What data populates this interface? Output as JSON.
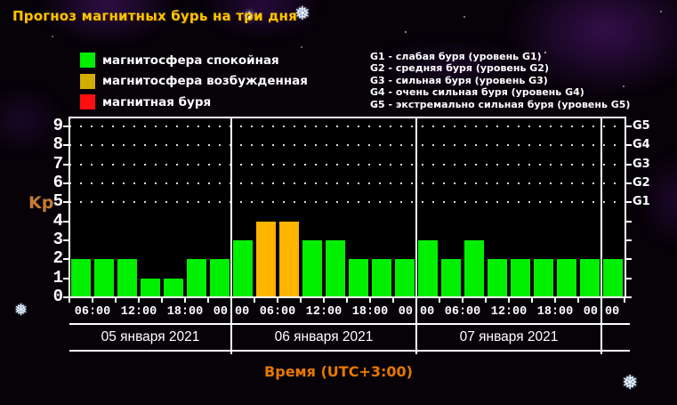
{
  "title": "Прогноз магнитных бурь на три дня",
  "legend": {
    "items": [
      {
        "name": "calm",
        "label": "магнитосфера спокойная",
        "color": "#00ee00"
      },
      {
        "name": "excited",
        "label": "магнитосфера возбужденная",
        "color": "#d2ae00"
      },
      {
        "name": "storm",
        "label": "магнитная буря",
        "color": "#ff0f0f"
      }
    ]
  },
  "storm_scale": {
    "items": [
      "G1 - слабая буря (уровень G1)",
      "G2 - средняя буря (уровень G2)",
      "G3 - сильная буря (уровень G3)",
      "G4 - очень сильная буря (уровень G4)",
      "G5 - экстремально сильная буря (уровень G5)"
    ]
  },
  "chart_data": {
    "type": "bar",
    "ylabel": "Kp",
    "xlabel": "Время (UTC+3:00)",
    "ylim": [
      0,
      9
    ],
    "yticks": [
      0,
      1,
      2,
      3,
      4,
      5,
      6,
      7,
      8,
      9
    ],
    "grid_levels": [
      5,
      6,
      7,
      8,
      9
    ],
    "right_axis": {
      "labels": [
        "G1",
        "G2",
        "G3",
        "G4",
        "G5"
      ],
      "levels": [
        5,
        6,
        7,
        8,
        9
      ]
    },
    "interval_hours": 3,
    "start_time": "05 января 2021 03:00",
    "values": [
      2,
      2,
      2,
      1,
      1,
      2,
      2,
      3,
      4,
      4,
      3,
      3,
      2,
      2,
      2,
      3,
      2,
      3,
      2,
      2,
      2,
      2,
      2,
      2
    ],
    "bar_palette": {
      "calm": "#00f000",
      "excited": "#ffb400",
      "storm": "#ff0000"
    },
    "thresholds": {
      "excited_at": 4,
      "storm_at": 5
    },
    "x_tick_labels": [
      "06:00",
      "12:00",
      "18:00",
      "00:00",
      "06:00",
      "12:00",
      "18:00",
      "00:00",
      "06:00",
      "12:00",
      "18:00",
      "00:00"
    ],
    "day_labels": [
      "05 января 2021",
      "06 января 2021",
      "07 января 2021"
    ],
    "day_boundaries_after_bar": [
      7,
      15,
      23
    ]
  },
  "icons": {
    "snowflake": "❅",
    "sparkle": "✦"
  }
}
